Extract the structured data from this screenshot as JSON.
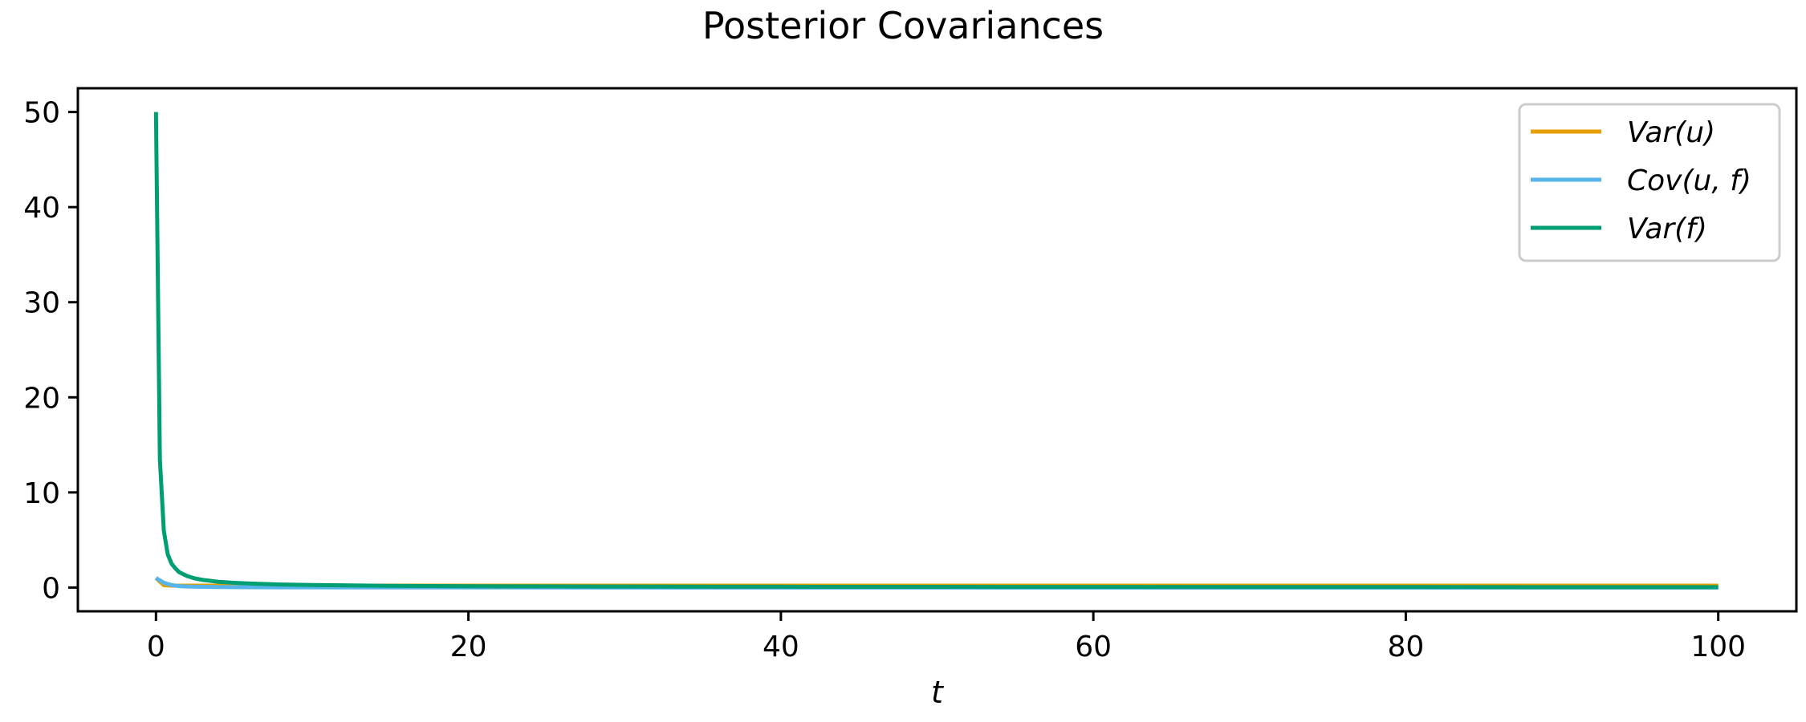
{
  "chart_data": {
    "type": "line",
    "title": "Posterior Covariances",
    "xlabel": "t",
    "ylabel": "",
    "xlim": [
      -5,
      105
    ],
    "ylim": [
      -2.5,
      52.5
    ],
    "xticks": [
      0,
      20,
      40,
      60,
      80,
      100
    ],
    "yticks": [
      0,
      10,
      20,
      30,
      40,
      50
    ],
    "grid": false,
    "legend_position": "top-right",
    "series": [
      {
        "name": "Var(u)",
        "color": "#E69F00",
        "x": [
          0,
          0.5,
          1,
          1.5,
          2,
          3,
          4,
          6,
          8,
          10,
          15,
          20,
          30,
          40,
          50,
          60,
          70,
          80,
          90,
          100
        ],
        "y": [
          1.0,
          0.25,
          0.2,
          0.2,
          0.2,
          0.2,
          0.2,
          0.2,
          0.2,
          0.2,
          0.2,
          0.2,
          0.2,
          0.2,
          0.2,
          0.2,
          0.2,
          0.2,
          0.2,
          0.2
        ]
      },
      {
        "name": "Cov(u, f)",
        "color": "#56B4E9",
        "x": [
          0,
          0.5,
          1,
          1.5,
          2,
          3,
          4,
          6,
          8,
          10,
          15,
          20,
          30,
          40,
          50,
          60,
          70,
          80,
          90,
          100
        ],
        "y": [
          1.0,
          0.5,
          0.25,
          0.15,
          0.1,
          0.07,
          0.05,
          0.03,
          0.02,
          0.02,
          0.01,
          0.01,
          0.0,
          0.0,
          0.0,
          0.0,
          0.0,
          0.0,
          0.0,
          0.0
        ]
      },
      {
        "name": "Var(f)",
        "color": "#009E73",
        "x": [
          0,
          0.25,
          0.5,
          0.75,
          1,
          1.25,
          1.5,
          2,
          2.5,
          3,
          4,
          5,
          6,
          8,
          10,
          15,
          20,
          30,
          40,
          50,
          60,
          70,
          80,
          90,
          100
        ],
        "y": [
          50,
          13.5,
          6.0,
          3.5,
          2.5,
          2.0,
          1.6,
          1.2,
          0.95,
          0.8,
          0.6,
          0.5,
          0.42,
          0.32,
          0.26,
          0.18,
          0.14,
          0.1,
          0.08,
          0.07,
          0.06,
          0.05,
          0.05,
          0.04,
          0.04
        ]
      }
    ]
  }
}
